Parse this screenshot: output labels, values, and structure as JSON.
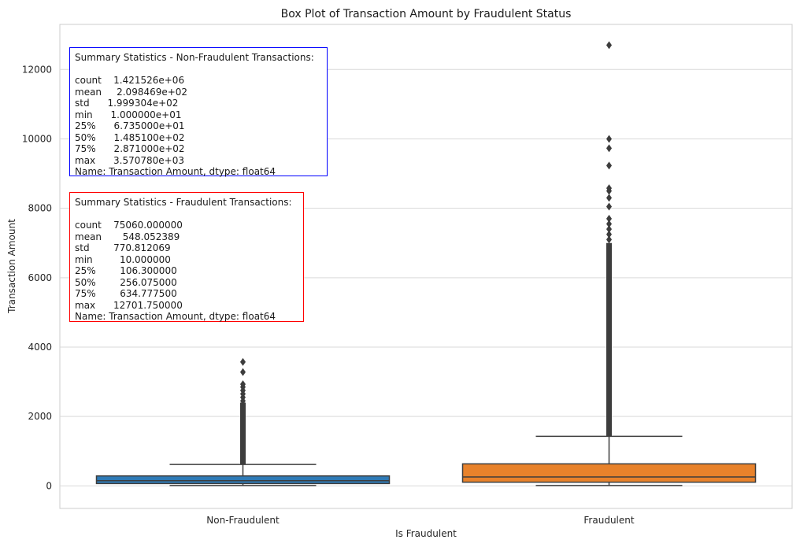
{
  "chart_data": {
    "type": "box",
    "title": "Box Plot of Transaction Amount by Fraudulent Status",
    "xlabel": "Is Fraudulent",
    "ylabel": "Transaction Amount",
    "categories": [
      "Non-Fraudulent",
      "Fraudulent"
    ],
    "ylim": [
      -650,
      13300
    ],
    "yticks": [
      0,
      2000,
      4000,
      6000,
      8000,
      10000,
      12000
    ],
    "grid": true,
    "boxes": [
      {
        "category": "Non-Fraudulent",
        "color": "#2e7ab6",
        "min": 10,
        "q1": 67.35,
        "median": 148.51,
        "q3": 287.1,
        "whisker_high": 617,
        "max": 3570.78,
        "outlier_range": [
          620,
          2400
        ],
        "outliers": [
          2450,
          2550,
          2650,
          2750,
          2850,
          2930,
          3280,
          3570.78
        ]
      },
      {
        "category": "Fraudulent",
        "color": "#e8822b",
        "min": 10,
        "q1": 106.3,
        "median": 256.075,
        "q3": 634.7775,
        "whisker_high": 1427,
        "max": 12701.75,
        "outlier_range": [
          1430,
          7000
        ],
        "outliers": [
          7100,
          7250,
          7400,
          7550,
          7700,
          8050,
          8300,
          8500,
          8580,
          9230,
          9730,
          10000,
          12701.75
        ]
      }
    ]
  },
  "annotations": {
    "nonfraud": {
      "title": "Summary Statistics - Non-Fraudulent Transactions:",
      "lines": [
        "count    1.421526e+06",
        "mean     2.098469e+02",
        "std      1.999304e+02",
        "min      1.000000e+01",
        "25%      6.735000e+01",
        "50%      1.485100e+02",
        "75%      2.871000e+02",
        "max      3.570780e+03",
        "Name: Transaction Amount, dtype: float64"
      ],
      "border_color": "#0000ff"
    },
    "fraud": {
      "title": "Summary Statistics - Fraudulent Transactions:",
      "lines": [
        "count    75060.000000",
        "mean       548.052389",
        "std        770.812069",
        "min         10.000000",
        "25%        106.300000",
        "50%        256.075000",
        "75%        634.777500",
        "max      12701.750000",
        "Name: Transaction Amount, dtype: float64"
      ],
      "border_color": "#ff0000"
    }
  }
}
